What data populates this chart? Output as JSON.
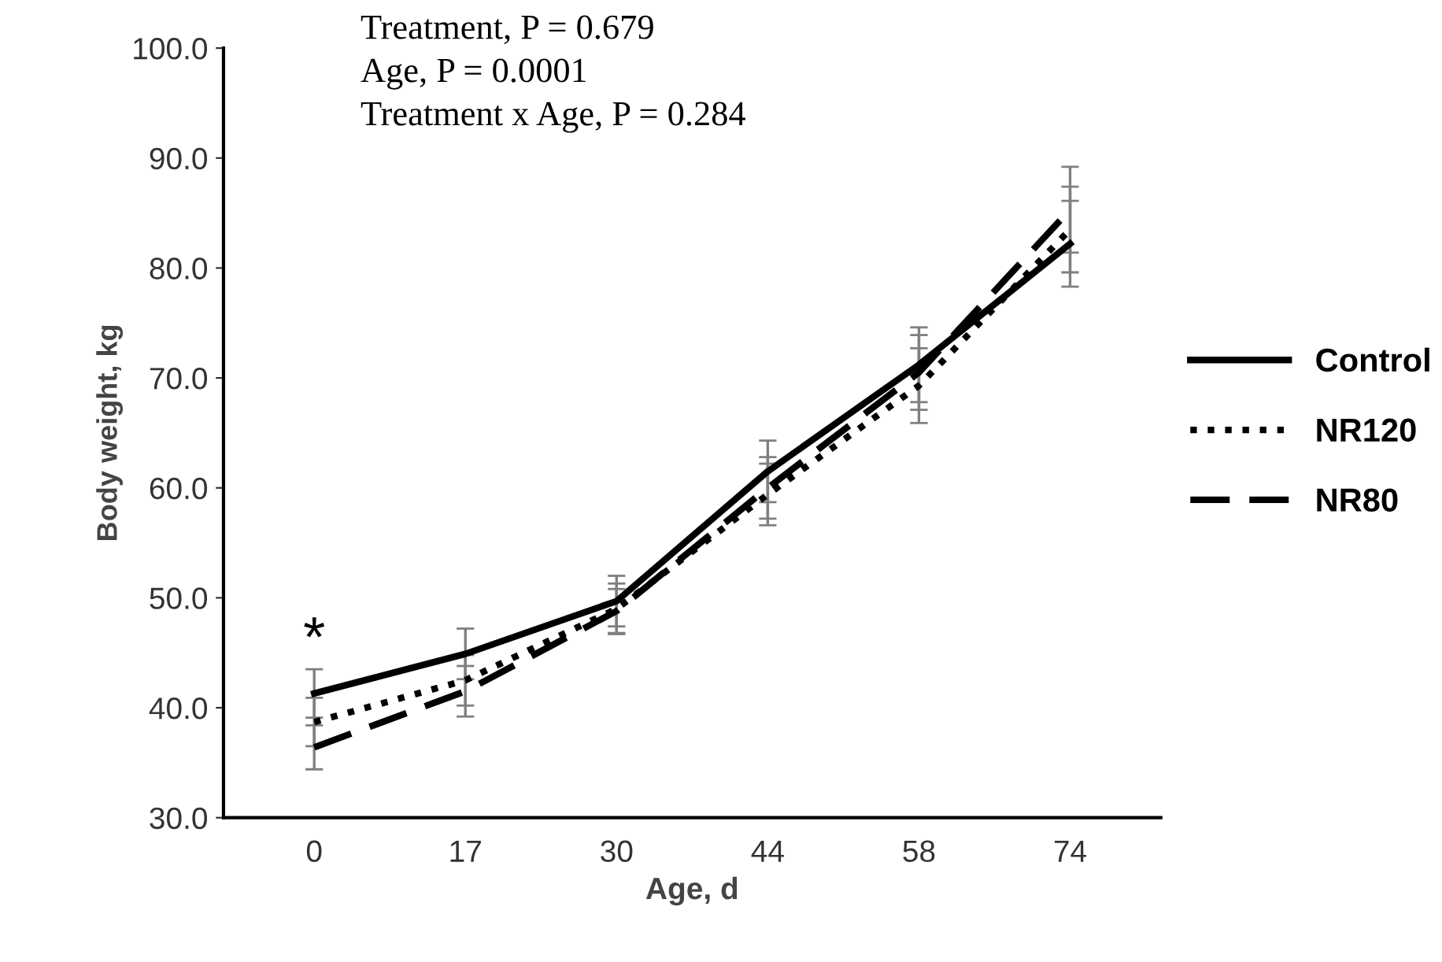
{
  "chart_data": {
    "type": "line",
    "xlabel": "Age, d",
    "ylabel": "Body weight, kg",
    "categories": [
      "0",
      "17",
      "30",
      "44",
      "58",
      "74"
    ],
    "series": [
      {
        "name": "Control",
        "color": "#000000",
        "line_style": "solid",
        "values": [
          41.3,
          44.9,
          49.7,
          61.5,
          71.2,
          82.2
        ],
        "errors": [
          2.2,
          2.3,
          2.3,
          2.8,
          3.4,
          3.9
        ]
      },
      {
        "name": "NR120",
        "color": "#000000",
        "line_style": "dotted",
        "values": [
          38.7,
          42.5,
          49.0,
          59.4,
          69.3,
          83.5
        ],
        "errors": [
          2.2,
          2.3,
          2.3,
          2.8,
          3.4,
          3.9
        ]
      },
      {
        "name": "NR80",
        "color": "#000000",
        "line_style": "dashed",
        "values": [
          36.4,
          41.5,
          48.8,
          60.0,
          70.5,
          85.3
        ],
        "errors": [
          2.0,
          2.3,
          2.0,
          2.8,
          3.4,
          3.9
        ]
      }
    ],
    "ylim": [
      30,
      100
    ],
    "yticks": [
      {
        "value": 30,
        "label": "30.0"
      },
      {
        "value": 40,
        "label": "40.0"
      },
      {
        "value": 50,
        "label": "50.0"
      },
      {
        "value": 60,
        "label": "60.0"
      },
      {
        "value": 70,
        "label": "70.0"
      },
      {
        "value": 80,
        "label": "80.0"
      },
      {
        "value": 90,
        "label": "90.0"
      },
      {
        "value": 100,
        "label": "100.0"
      }
    ],
    "grid": false,
    "legend": "right",
    "marker": "none",
    "annotations": [
      "Treatment, P = 0.679",
      "Age, P = 0.0001",
      "Treatment x Age, P = 0.284",
      "*"
    ]
  }
}
